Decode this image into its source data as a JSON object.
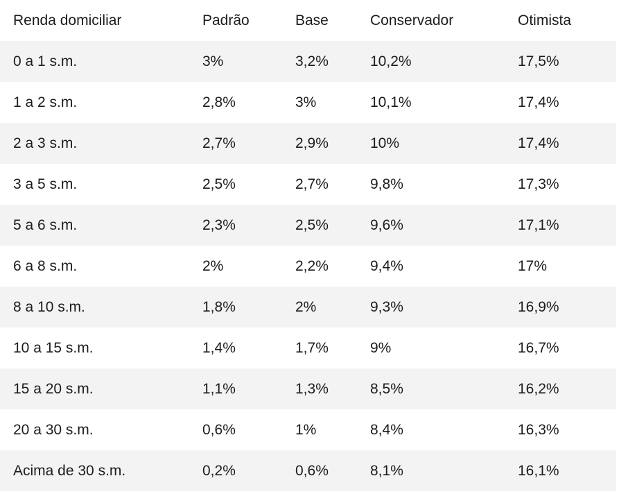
{
  "table": {
    "headers": [
      "Renda domiciliar",
      "Padrão",
      "Base",
      "Conservador",
      "Otimista"
    ],
    "rows": [
      [
        "0 a 1 s.m.",
        "3%",
        "3,2%",
        "10,2%",
        "17,5%"
      ],
      [
        "1 a 2 s.m.",
        "2,8%",
        "3%",
        "10,1%",
        "17,4%"
      ],
      [
        "2 a 3 s.m.",
        "2,7%",
        "2,9%",
        "10%",
        "17,4%"
      ],
      [
        "3 a 5 s.m.",
        "2,5%",
        "2,7%",
        "9,8%",
        "17,3%"
      ],
      [
        "5 a 6 s.m.",
        "2,3%",
        "2,5%",
        "9,6%",
        "17,1%"
      ],
      [
        "6 a 8 s.m.",
        "2%",
        "2,2%",
        "9,4%",
        "17%"
      ],
      [
        "8 a 10 s.m.",
        "1,8%",
        "2%",
        "9,3%",
        "16,9%"
      ],
      [
        "10 a 15 s.m.",
        "1,4%",
        "1,7%",
        "9%",
        "16,7%"
      ],
      [
        "15 a 20 s.m.",
        "1,1%",
        "1,3%",
        "8,5%",
        "16,2%"
      ],
      [
        "20 a 30 s.m.",
        "0,6%",
        "1%",
        "8,4%",
        "16,3%"
      ],
      [
        "Acima de 30 s.m.",
        "0,2%",
        "0,6%",
        "8,1%",
        "16,1%"
      ]
    ]
  },
  "colors": {
    "shaded_row": "#f3f3f3",
    "text": "#1c1c1c"
  }
}
